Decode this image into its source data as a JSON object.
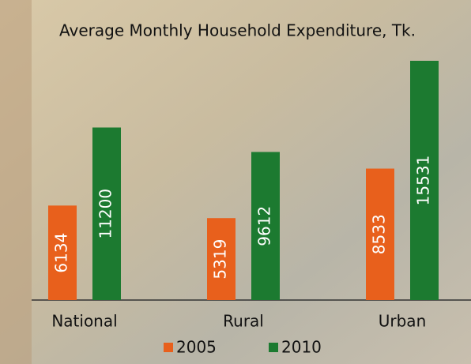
{
  "chart_data": {
    "type": "bar",
    "title": "Average Monthly Household Expenditure, Tk.",
    "categories": [
      "National",
      "Rural",
      "Urban"
    ],
    "series": [
      {
        "name": "2005",
        "color": "#e8601c",
        "values": [
          6134,
          5319,
          8533
        ]
      },
      {
        "name": "2010",
        "color": "#1c7a30",
        "values": [
          11200,
          9612,
          15531
        ]
      }
    ]
  }
}
